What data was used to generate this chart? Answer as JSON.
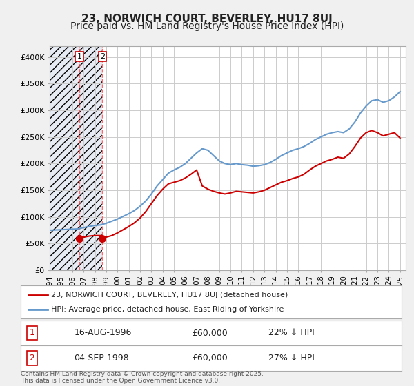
{
  "title": "23, NORWICH COURT, BEVERLEY, HU17 8UJ",
  "subtitle": "Price paid vs. HM Land Registry's House Price Index (HPI)",
  "xlabel": "",
  "ylabel": "",
  "ylim": [
    0,
    420000
  ],
  "yticks": [
    0,
    50000,
    100000,
    150000,
    200000,
    250000,
    300000,
    350000,
    400000
  ],
  "ytick_labels": [
    "£0",
    "£50K",
    "£100K",
    "£150K",
    "£200K",
    "£250K",
    "£300K",
    "£350K",
    "£400K"
  ],
  "xlim_start": 1994.0,
  "xlim_end": 2025.5,
  "hpi_color": "#6699cc",
  "price_color": "#cc0000",
  "background_color": "#f0f0f0",
  "plot_bg_color": "#ffffff",
  "grid_color": "#cccccc",
  "sale1_year": 1996.62,
  "sale1_price": 60000,
  "sale2_year": 1998.67,
  "sale2_price": 60000,
  "legend_line1": "23, NORWICH COURT, BEVERLEY, HU17 8UJ (detached house)",
  "legend_line2": "HPI: Average price, detached house, East Riding of Yorkshire",
  "table_rows": [
    {
      "num": "1",
      "date": "16-AUG-1996",
      "price": "£60,000",
      "hpi": "22% ↓ HPI"
    },
    {
      "num": "2",
      "date": "04-SEP-1998",
      "price": "£60,000",
      "hpi": "27% ↓ HPI"
    }
  ],
  "footer": "Contains HM Land Registry data © Crown copyright and database right 2025.\nThis data is licensed under the Open Government Licence v3.0.",
  "hatch_start": 1994.0,
  "hatch_end": 1996.62,
  "hatch_start2": 1996.62,
  "hatch_end2": 1998.67,
  "title_fontsize": 11,
  "subtitle_fontsize": 10
}
